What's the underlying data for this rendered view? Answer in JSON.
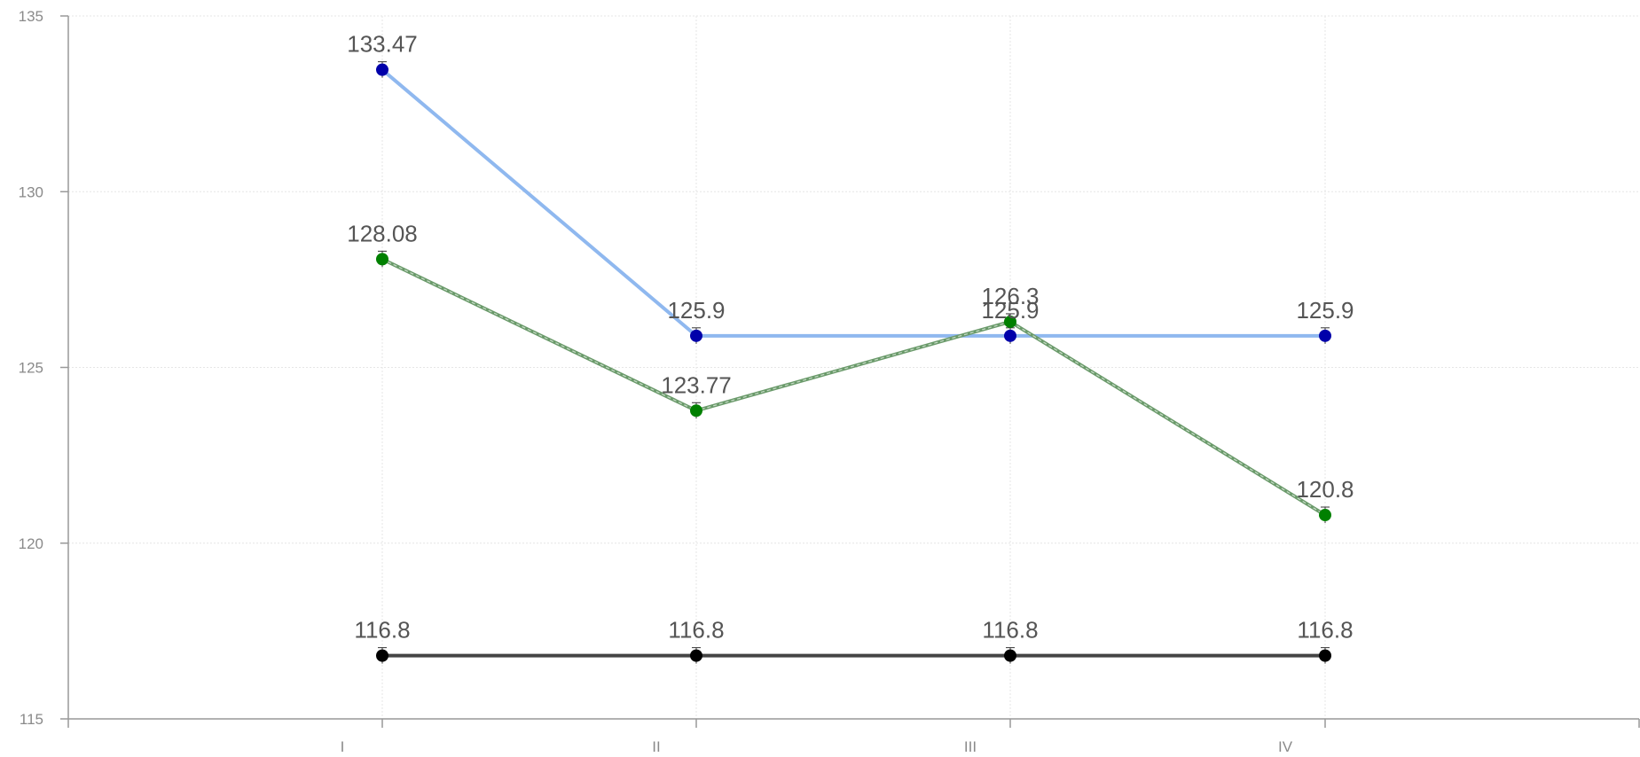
{
  "chart_data": {
    "type": "line",
    "title": "",
    "xlabel": "",
    "ylabel": "",
    "categories": [
      "I",
      "II",
      "III",
      "IV"
    ],
    "ylim": [
      115,
      135
    ],
    "yticks": [
      115,
      120,
      125,
      130,
      135
    ],
    "grid": true,
    "legend": "none",
    "series": [
      {
        "color": "#8fb8ef",
        "marker_color": "#0000aa",
        "style": "solid",
        "values": [
          133.47,
          125.9,
          125.9,
          125.9
        ],
        "labels": [
          "133.47",
          "125.9",
          "125.9",
          "125.9"
        ]
      },
      {
        "color": "#6a9a6a",
        "marker_color": "#008000",
        "style": "dashed",
        "values": [
          128.08,
          123.77,
          126.3,
          120.8
        ],
        "labels": [
          "128.08",
          "123.77",
          "126.3",
          "120.8"
        ]
      },
      {
        "color": "#444444",
        "marker_color": "#000000",
        "style": "solid",
        "values": [
          116.8,
          116.8,
          116.8,
          116.8
        ],
        "labels": [
          "116.8",
          "116.8",
          "116.8",
          "116.8"
        ]
      }
    ]
  }
}
